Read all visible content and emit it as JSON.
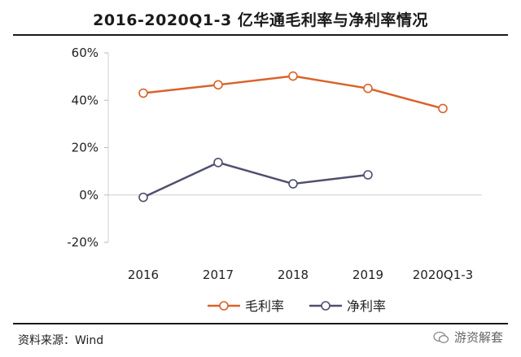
{
  "title": "2016-2020Q1-3 亿华通毛利率与净利率情况",
  "source": "资料来源：Wind",
  "watermark": "游资解套",
  "chart_data": {
    "type": "line",
    "categories": [
      "2016",
      "2017",
      "2018",
      "2019",
      "2020Q1-3"
    ],
    "series": [
      {
        "name": "毛利率",
        "color": "#d9622b",
        "values": [
          43,
          46.5,
          50.2,
          45,
          36.5
        ]
      },
      {
        "name": "净利率",
        "color": "#4f4f6f",
        "values": [
          -1,
          13.7,
          4.7,
          8.5,
          null
        ]
      }
    ],
    "ylim": [
      -20,
      60
    ],
    "yticks": [
      -20,
      0,
      20,
      40,
      60
    ],
    "ytick_labels": [
      "-20%",
      "0%",
      "20%",
      "40%",
      "60%"
    ],
    "grid": false,
    "legend_position": "bottom",
    "xlabel": "",
    "ylabel": ""
  }
}
